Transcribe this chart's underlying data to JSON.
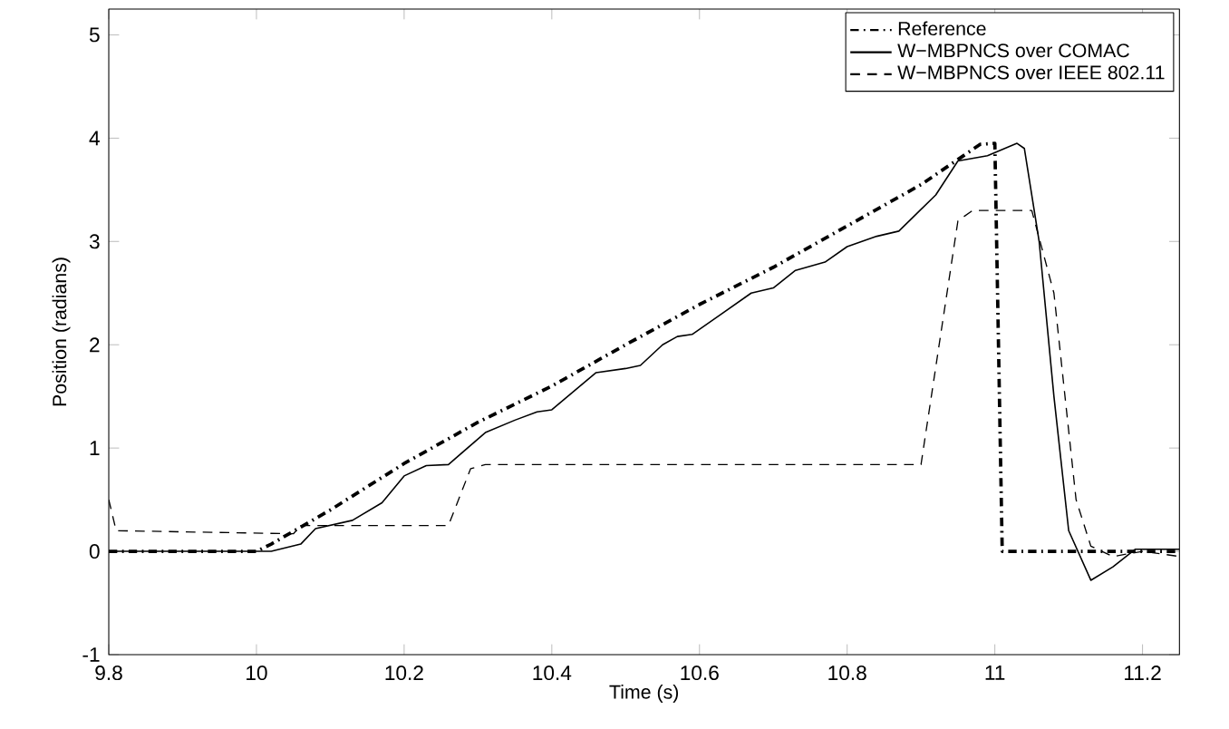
{
  "chart_data": {
    "type": "line",
    "xlabel": "Time (s)",
    "ylabel": "Position (radians)",
    "xlim": [
      9.8,
      11.25
    ],
    "ylim": [
      -1,
      5.25
    ],
    "xticks": [
      9.8,
      10,
      10.2,
      10.4,
      10.6,
      10.8,
      11,
      11.2
    ],
    "yticks": [
      -1,
      0,
      1,
      2,
      3,
      4,
      5
    ],
    "grid": false,
    "legend": "top right",
    "series": [
      {
        "name": "Reference",
        "color": "#000000",
        "line_style": "dashdot",
        "x": [
          9.8,
          10.0,
          10.02,
          10.1,
          10.2,
          10.3,
          10.4,
          10.5,
          10.6,
          10.7,
          10.8,
          10.9,
          10.98,
          11.0,
          11.01,
          11.25
        ],
        "values": [
          0,
          0,
          0.07,
          0.4,
          0.85,
          1.25,
          1.6,
          2.0,
          2.39,
          2.75,
          3.15,
          3.55,
          3.94,
          3.95,
          0,
          0
        ]
      },
      {
        "name": "W−MBPNCS over COMAC",
        "color": "#000000",
        "line_style": "solid",
        "x": [
          9.8,
          10.02,
          10.06,
          10.08,
          10.13,
          10.17,
          10.2,
          10.23,
          10.26,
          10.31,
          10.35,
          10.38,
          10.4,
          10.43,
          10.46,
          10.5,
          10.52,
          10.55,
          10.57,
          10.59,
          10.63,
          10.67,
          10.7,
          10.73,
          10.77,
          10.8,
          10.84,
          10.87,
          10.92,
          10.95,
          10.99,
          11.03,
          11.04,
          11.06,
          11.08,
          11.1,
          11.13,
          11.16,
          11.19,
          11.25
        ],
        "values": [
          0,
          0,
          0.07,
          0.22,
          0.3,
          0.47,
          0.73,
          0.83,
          0.84,
          1.15,
          1.27,
          1.35,
          1.37,
          1.55,
          1.73,
          1.77,
          1.8,
          2.0,
          2.08,
          2.1,
          2.3,
          2.5,
          2.55,
          2.72,
          2.8,
          2.95,
          3.05,
          3.1,
          3.45,
          3.78,
          3.83,
          3.95,
          3.9,
          3.0,
          1.5,
          0.2,
          -0.28,
          -0.15,
          0.02,
          0.02
        ]
      },
      {
        "name": "W−MBPNCS over IEEE 802.11",
        "color": "#000000",
        "line_style": "dashed",
        "x": [
          9.8,
          9.81,
          10.05,
          10.06,
          10.26,
          10.29,
          10.31,
          10.9,
          10.95,
          10.97,
          11.05,
          11.08,
          11.11,
          11.13,
          11.16,
          11.2,
          11.25
        ],
        "values": [
          0.5,
          0.2,
          0.17,
          0.25,
          0.25,
          0.8,
          0.84,
          0.84,
          3.2,
          3.3,
          3.3,
          2.5,
          0.5,
          0.05,
          -0.05,
          0.0,
          -0.05
        ]
      }
    ]
  }
}
